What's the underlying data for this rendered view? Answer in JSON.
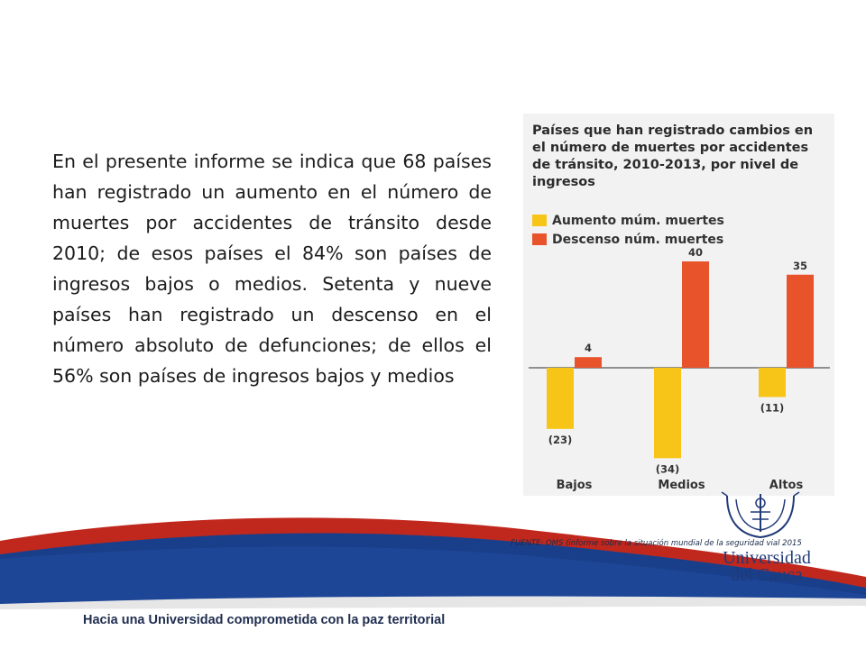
{
  "slide": {
    "body_text": "En el presente informe se indica que 68 países han registrado un aumento en el número de muertes por accidentes de tránsito desde 2010; de esos países el 84% son países de ingresos bajos o medios. Setenta y nueve países han registrado un descenso en el número absoluto de defunciones; de ellos el 56% son países de ingresos bajos y medios",
    "source": "FUENTE: OMS (informe sobre la situación mundial de la seguridad vial 2015",
    "tagline": "Hacia una Universidad comprometida con la paz territorial",
    "university_line1": "Universidad",
    "university_line2": "del Cauca"
  },
  "colors": {
    "increase": "#f7c517",
    "decrease": "#e8532c",
    "navy": "#1f2d4f",
    "band_blue": "#1a3f8a",
    "band_red": "#c0281d"
  },
  "chart_data": {
    "type": "bar",
    "title": "Países que han registrado cambios en el número de muertes por accidentes de tránsito, 2010-2013, por nivel de ingresos",
    "categories": [
      "Bajos",
      "Medios",
      "Altos"
    ],
    "series": [
      {
        "name": "Aumento múm. muertes",
        "values": [
          -23,
          -34,
          -11
        ],
        "labels": [
          "(23)",
          "(34)",
          "(11)"
        ]
      },
      {
        "name": "Descenso núm. muertes",
        "values": [
          4,
          40,
          35
        ],
        "labels": [
          "4",
          "40",
          "35"
        ]
      }
    ],
    "ylim": [
      -40,
      45
    ],
    "grid": false,
    "legend_position": "top-left"
  }
}
